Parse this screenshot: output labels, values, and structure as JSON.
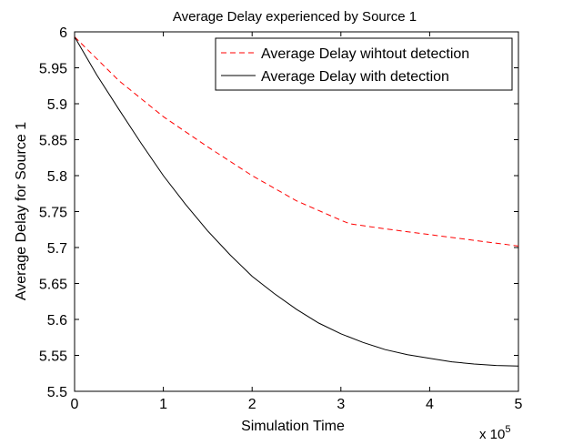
{
  "chart_data": {
    "type": "line",
    "title": "Average Delay experienced by Source 1",
    "xlabel": "Simulation Time",
    "ylabel": "Average Delay for Source 1",
    "x_multiplier_label": "x 10",
    "x_multiplier_exponent": "5",
    "xlim": [
      0,
      5
    ],
    "ylim": [
      5.5,
      6
    ],
    "xticks": [
      0,
      1,
      2,
      3,
      4,
      5
    ],
    "xtick_labels": [
      "0",
      "1",
      "2",
      "3",
      "4",
      "5"
    ],
    "yticks": [
      5.5,
      5.55,
      5.6,
      5.65,
      5.7,
      5.75,
      5.8,
      5.85,
      5.9,
      5.95,
      6
    ],
    "ytick_labels": [
      "5.5",
      "5.55",
      "5.6",
      "5.65",
      "5.7",
      "5.75",
      "5.8",
      "5.85",
      "5.9",
      "5.95",
      "6"
    ],
    "grid": false,
    "legend_position": "top-right",
    "series": [
      {
        "name": "Average Delay wihtout detection",
        "color": "#ff0000",
        "style": "dashed",
        "x": [
          0,
          0.5,
          1,
          1.5,
          2,
          2.5,
          3,
          3.1,
          3.5,
          4,
          4.5,
          5
        ],
        "y": [
          5.993,
          5.932,
          5.882,
          5.84,
          5.8,
          5.765,
          5.738,
          5.733,
          5.726,
          5.718,
          5.71,
          5.702
        ]
      },
      {
        "name": "Average Delay with detection",
        "color": "#000000",
        "style": "solid",
        "x": [
          0,
          0.25,
          0.5,
          0.75,
          1,
          1.25,
          1.5,
          1.75,
          2,
          2.25,
          2.5,
          2.75,
          3,
          3.25,
          3.5,
          3.75,
          4,
          4.25,
          4.5,
          4.75,
          5
        ],
        "y": [
          5.993,
          5.94,
          5.892,
          5.845,
          5.8,
          5.76,
          5.723,
          5.69,
          5.66,
          5.636,
          5.614,
          5.595,
          5.58,
          5.568,
          5.558,
          5.551,
          5.546,
          5.541,
          5.538,
          5.536,
          5.535
        ]
      }
    ]
  }
}
